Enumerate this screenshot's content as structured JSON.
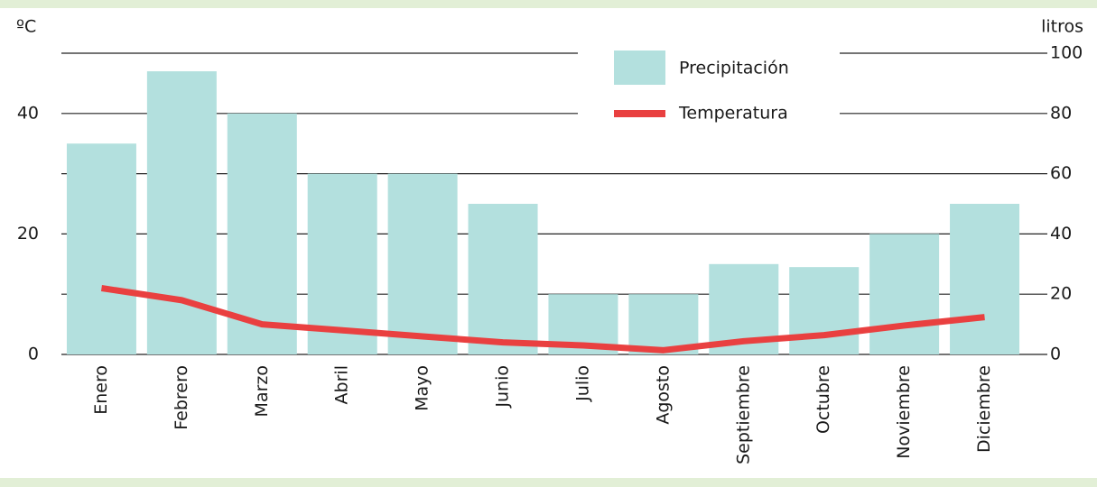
{
  "chart_data": {
    "type": "bar-line",
    "ylabel": "ºC",
    "y2label": "litros",
    "categories": [
      "Enero",
      "Febrero",
      "Marzo",
      "Abril",
      "Mayo",
      "Junio",
      "Julio",
      "Agosto",
      "Septiembre",
      "Octubre",
      "Noviembre",
      "Diciembre"
    ],
    "series": [
      {
        "name": "Precipitación",
        "type": "bar",
        "axis": "y2",
        "color": "#b3e0de",
        "values": [
          70,
          94,
          80,
          60,
          60,
          50,
          20,
          20,
          30,
          29,
          40,
          50
        ]
      },
      {
        "name": "Temperatura",
        "type": "line",
        "axis": "y",
        "color": "#e94040",
        "values": [
          11,
          9,
          5,
          4,
          3,
          2,
          1.5,
          0.7,
          2.2,
          3.2,
          4.8,
          6.2
        ]
      }
    ],
    "ylim": [
      0,
      50
    ],
    "yticks": [
      0,
      20,
      40
    ],
    "y2lim": [
      0,
      100
    ],
    "y2ticks": [
      0,
      20,
      40,
      60,
      80,
      100
    ],
    "grid": true,
    "legend": "top-right"
  }
}
